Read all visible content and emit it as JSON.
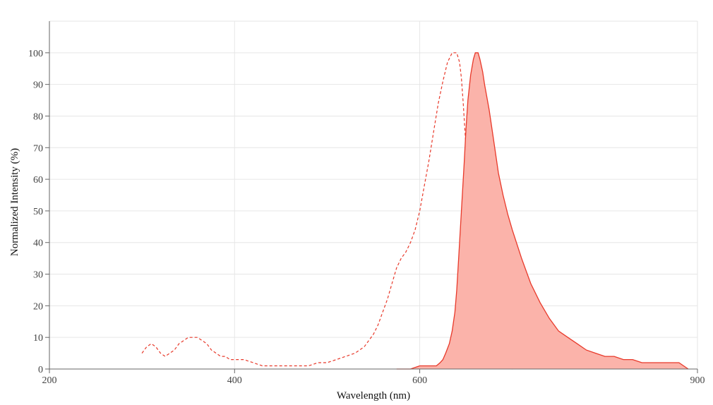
{
  "chart_data": {
    "type": "area",
    "xlabel": "Wavelength (nm)",
    "ylabel": "Normalized Intensity (%)",
    "xlim": [
      200,
      900
    ],
    "ylim": [
      0,
      100
    ],
    "x_ticks": [
      "200",
      "400",
      "600",
      "900"
    ],
    "y_ticks": [
      "0",
      "10",
      "20",
      "30",
      "40",
      "50",
      "60",
      "70",
      "80",
      "90",
      "100"
    ],
    "grid": true,
    "legend": "none",
    "colors": {
      "line": "#e8392a",
      "fill": "#fbb3aa",
      "grid": "#e6e6e6",
      "axis": "#666666"
    },
    "series": [
      {
        "style": "dashed-line",
        "x": [
          300,
          305,
          310,
          315,
          320,
          325,
          330,
          335,
          340,
          345,
          350,
          355,
          360,
          365,
          370,
          375,
          380,
          385,
          390,
          395,
          400,
          410,
          420,
          430,
          440,
          460,
          480,
          490,
          500,
          510,
          520,
          530,
          540,
          545,
          550,
          555,
          560,
          565,
          570,
          575,
          580,
          585,
          590,
          595,
          600,
          605,
          610,
          615,
          620,
          625,
          630,
          635,
          640,
          643,
          645,
          647,
          650,
          653,
          655,
          658,
          660,
          665,
          670,
          675,
          680,
          685,
          690,
          695,
          700
        ],
        "y": [
          5,
          7,
          8,
          7,
          5,
          4,
          5,
          6,
          8,
          9,
          10,
          10,
          10,
          9,
          8,
          6,
          5,
          4,
          4,
          3,
          3,
          3,
          2,
          1,
          1,
          1,
          1,
          2,
          2,
          3,
          4,
          5,
          7,
          9,
          11,
          14,
          18,
          22,
          27,
          32,
          35,
          37,
          40,
          44,
          50,
          58,
          66,
          75,
          84,
          91,
          97,
          100,
          100,
          97,
          92,
          84,
          70,
          55,
          40,
          26,
          16,
          8,
          4,
          2,
          1,
          0.5,
          0.2,
          0.1,
          0
        ]
      },
      {
        "style": "filled-area",
        "x": [
          575,
          590,
          600,
          610,
          618,
          622,
          625,
          628,
          632,
          635,
          638,
          640,
          642,
          645,
          648,
          650,
          652,
          655,
          658,
          660,
          663,
          665,
          668,
          670,
          675,
          680,
          685,
          690,
          695,
          700,
          710,
          720,
          730,
          740,
          750,
          760,
          770,
          780,
          790,
          800,
          810,
          820,
          830,
          840,
          850,
          860,
          870,
          880,
          890
        ],
        "y": [
          0,
          0,
          1,
          1,
          1,
          2,
          3,
          5,
          8,
          12,
          18,
          25,
          35,
          50,
          65,
          76,
          85,
          93,
          98,
          100,
          100,
          98,
          94,
          90,
          82,
          72,
          62,
          55,
          49,
          44,
          35,
          27,
          21,
          16,
          12,
          10,
          8,
          6,
          5,
          4,
          4,
          3,
          3,
          2,
          2,
          2,
          2,
          2,
          0
        ]
      }
    ]
  }
}
